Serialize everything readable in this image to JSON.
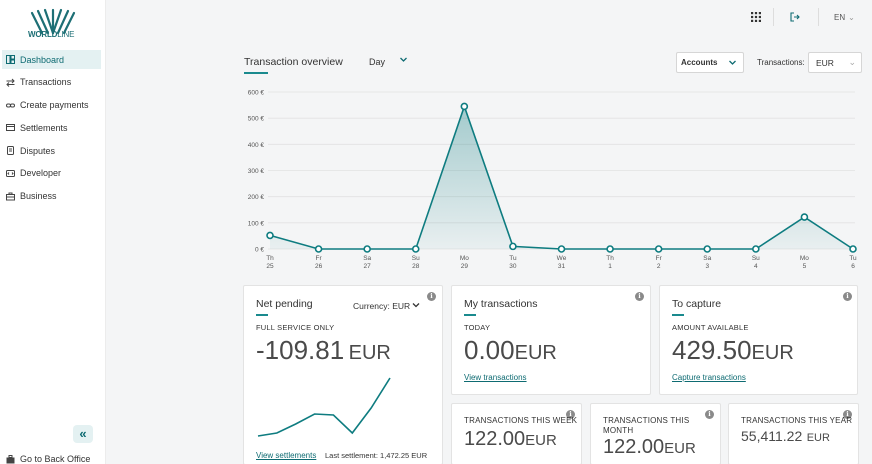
{
  "brand": {
    "logo_text_bold": "WORLD",
    "logo_text_light": "LINE"
  },
  "sidebar": {
    "items": [
      {
        "label": "Dashboard",
        "icon": "dashboard-icon",
        "active": true
      },
      {
        "label": "Transactions",
        "icon": "transfer-arrows-icon"
      },
      {
        "label": "Create payments",
        "icon": "link-icon"
      },
      {
        "label": "Settlements",
        "icon": "card-icon"
      },
      {
        "label": "Disputes",
        "icon": "document-icon"
      },
      {
        "label": "Developer",
        "icon": "code-icon"
      },
      {
        "label": "Business",
        "icon": "briefcase-icon"
      }
    ],
    "collapse_label": "«",
    "back_office_label": "Go to Back Office"
  },
  "topbar": {
    "language": "EN"
  },
  "overview": {
    "title": "Transaction overview",
    "period": "Day",
    "accounts_label": "Accounts",
    "transactions_label": "Transactions:",
    "currency": "EUR"
  },
  "chart_data": {
    "type": "area",
    "y_ticks": [
      "600 €",
      "500 €",
      "400 €",
      "300 €",
      "200 €",
      "100 €",
      "0 €"
    ],
    "ylim": [
      0,
      600
    ],
    "categories": [
      {
        "day": "Th",
        "date": "25"
      },
      {
        "day": "Fr",
        "date": "26"
      },
      {
        "day": "Sa",
        "date": "27"
      },
      {
        "day": "Su",
        "date": "28"
      },
      {
        "day": "Mo",
        "date": "29"
      },
      {
        "day": "Tu",
        "date": "30"
      },
      {
        "day": "We",
        "date": "31"
      },
      {
        "day": "Th",
        "date": "1"
      },
      {
        "day": "Fr",
        "date": "2"
      },
      {
        "day": "Sa",
        "date": "3"
      },
      {
        "day": "Su",
        "date": "4"
      },
      {
        "day": "Mo",
        "date": "5"
      },
      {
        "day": "Tu",
        "date": "6"
      }
    ],
    "values": [
      52,
      0,
      0,
      0,
      545,
      10,
      0,
      0,
      0,
      0,
      0,
      122,
      0
    ],
    "color": "#0e7c80",
    "grid": true
  },
  "net_pending": {
    "title": "Net pending",
    "currency_label": "Currency:",
    "currency_value": "EUR",
    "subtitle": "FULL SERVICE ONLY",
    "amount": "-109.81",
    "unit": "EUR",
    "link": "View settlements",
    "last_settlement": "Last settlement: 1,472.25 EUR",
    "sparkline": [
      2,
      5,
      14,
      24,
      23,
      5,
      30,
      60
    ]
  },
  "my_transactions": {
    "title": "My transactions",
    "subtitle": "TODAY",
    "amount": "0.00",
    "unit": "EUR",
    "link": "View transactions"
  },
  "to_capture": {
    "title": "To capture",
    "subtitle": "AMOUNT AVAILABLE",
    "amount": "429.50",
    "unit": "EUR",
    "link": "Capture transactions"
  },
  "week": {
    "title": "TRANSACTIONS THIS WEEK",
    "amount": "122.00",
    "unit": "EUR"
  },
  "month": {
    "title_line1": "TRANSACTIONS THIS",
    "title_line2": "MONTH",
    "amount": "122.00",
    "unit": "EUR"
  },
  "year": {
    "title": "TRANSACTIONS THIS YEAR",
    "amount": "55,411.22",
    "unit": "EUR"
  },
  "info_glyph": "i"
}
